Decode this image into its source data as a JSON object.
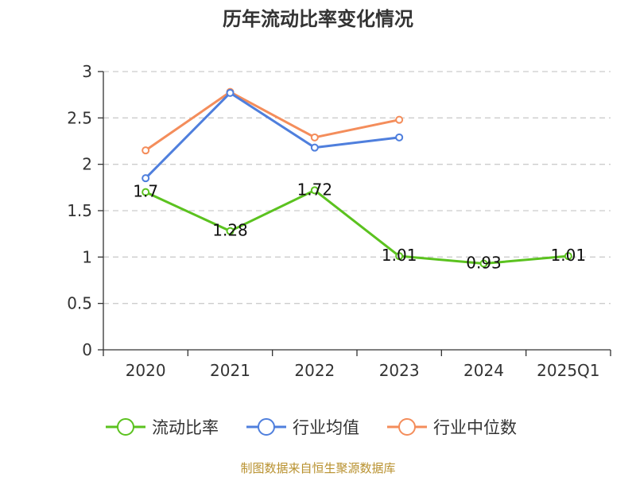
{
  "chart_data": {
    "type": "line",
    "title": "历年流动比率变化情况",
    "xlabel": "",
    "ylabel": "",
    "categories": [
      "2020",
      "2021",
      "2022",
      "2023",
      "2024",
      "2025Q1"
    ],
    "y_ticks": [
      "0",
      "0.5",
      "1",
      "1.5",
      "2",
      "2.5",
      "3"
    ],
    "ylim": [
      0,
      3
    ],
    "grid": true,
    "legend_position": "bottom",
    "series": [
      {
        "name": "流动比率",
        "color": "#5bc21f",
        "values": [
          1.7,
          1.28,
          1.72,
          1.01,
          0.93,
          1.01
        ],
        "labels": [
          "1.7",
          "1.28",
          "1.72",
          "1.01",
          "0.93",
          "1.01"
        ]
      },
      {
        "name": "行业均值",
        "color": "#4f7fdd",
        "values": [
          1.85,
          2.77,
          2.18,
          2.29,
          null,
          null
        ]
      },
      {
        "name": "行业中位数",
        "color": "#f48d5b",
        "values": [
          2.15,
          2.78,
          2.29,
          2.48,
          null,
          null
        ]
      }
    ],
    "source": "制图数据来自恒生聚源数据库",
    "source_color": "#b8912f"
  }
}
